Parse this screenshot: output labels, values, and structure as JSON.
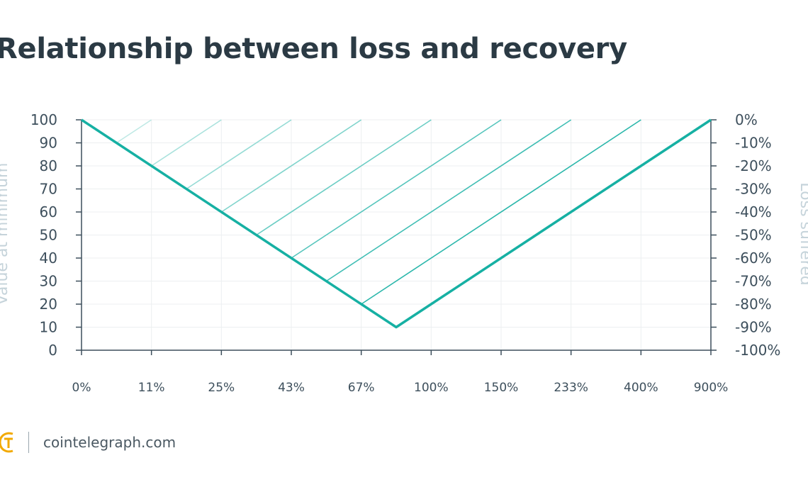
{
  "title": "Relationship between loss and recovery",
  "chart_data": {
    "type": "line",
    "ylabel_left": "Value at minimum",
    "ylabel_right": "Loss suffered",
    "left_ticks": [
      "0",
      "10",
      "20",
      "30",
      "40",
      "50",
      "60",
      "70",
      "80",
      "90",
      "100"
    ],
    "right_ticks": [
      "0%",
      "-10%",
      "-20%",
      "-30%",
      "-40%",
      "-50%",
      "-60%",
      "-70%",
      "-80%",
      "-90%",
      "-100%"
    ],
    "x_ticks": [
      "0%",
      "11%",
      "25%",
      "43%",
      "67%",
      "100%",
      "150%",
      "233%",
      "400%",
      "900%"
    ],
    "ylim": [
      0,
      100
    ],
    "start_value": 100,
    "minimum_value": 10,
    "series": [
      {
        "min_value": 90,
        "recovery_needed": "11%"
      },
      {
        "min_value": 80,
        "recovery_needed": "25%"
      },
      {
        "min_value": 70,
        "recovery_needed": "43%"
      },
      {
        "min_value": 60,
        "recovery_needed": "67%"
      },
      {
        "min_value": 50,
        "recovery_needed": "100%"
      },
      {
        "min_value": 40,
        "recovery_needed": "150%"
      },
      {
        "min_value": 30,
        "recovery_needed": "233%"
      },
      {
        "min_value": 20,
        "recovery_needed": "400%"
      },
      {
        "min_value": 10,
        "recovery_needed": "900%"
      }
    ],
    "colors": {
      "accent": "#16b0a3",
      "grid": "#eceff1",
      "axis": "#3d4f5c",
      "light_line": "#bfe9e5"
    },
    "grid": true
  },
  "footer": {
    "site": "cointelegraph.com",
    "logo_icon": "cointelegraph-logo-icon"
  }
}
